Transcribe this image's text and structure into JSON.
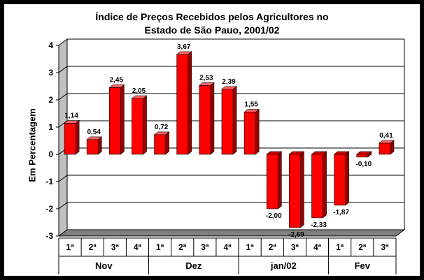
{
  "chart_data": {
    "type": "bar",
    "title": "Índice de Preços Recebidos pelos Agricultores no\nEstado de São Pauo, 2001/02",
    "ylabel": "Em Percentagem",
    "ylim": [
      -3,
      4
    ],
    "yticks": [
      -3,
      -2,
      -1,
      0,
      1,
      2,
      3,
      4
    ],
    "grid": true,
    "color": "#ff0000",
    "categories": [
      "1ª",
      "2ª",
      "3ª",
      "4ª",
      "1ª",
      "2ª",
      "3ª",
      "4ª",
      "1ª",
      "2ª",
      "3ª",
      "4ª",
      "1ª",
      "2ª",
      "3ª"
    ],
    "groups": [
      {
        "label": "Nov",
        "count": 4
      },
      {
        "label": "Dez",
        "count": 4
      },
      {
        "label": "jan/02",
        "count": 4
      },
      {
        "label": "Fev",
        "count": 3
      }
    ],
    "values": [
      1.14,
      0.54,
      2.45,
      2.05,
      0.72,
      3.67,
      2.53,
      2.39,
      1.55,
      -2.0,
      -2.69,
      -2.33,
      -1.87,
      -0.1,
      0.41
    ],
    "value_labels": [
      "1,14",
      "0,54",
      "2,45",
      "2,05",
      "0,72",
      "3,67",
      "2,53",
      "2,39",
      "1,55",
      "-2,00",
      "-2,69",
      "-2,33",
      "-1,87",
      "-0,10",
      "0,41"
    ]
  }
}
